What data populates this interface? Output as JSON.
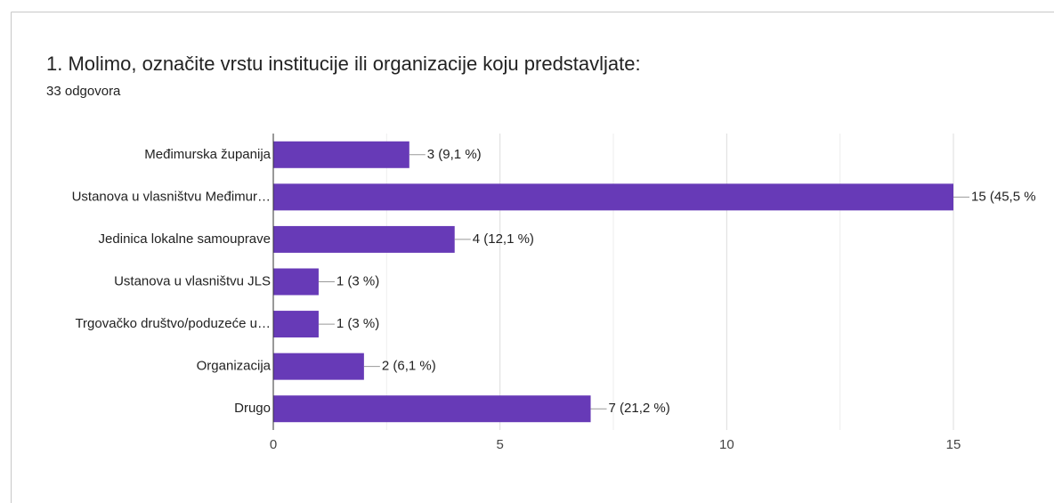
{
  "chart_data": {
    "type": "bar",
    "orientation": "horizontal",
    "title": "1. Molimo, označite vrstu institucije ili organizacije koju predstavljate:",
    "subtitle": "33 odgovora",
    "categories": [
      "Međimurska županija",
      "Ustanova u vlasništvu Međimur…",
      "Jedinica lokalne samouprave",
      "Ustanova u vlasništvu JLS",
      "Trgovačko društvo/poduzeće u…",
      "Organizacija",
      "Drugo"
    ],
    "values": [
      3,
      15,
      4,
      1,
      1,
      2,
      7
    ],
    "value_labels": [
      "3 (9,1 %)",
      "15 (45,5 %",
      "4 (12,1 %)",
      "1 (3 %)",
      "1 (3 %)",
      "2 (6,1 %)",
      "7 (21,2 %)"
    ],
    "color": "#673ab7",
    "xlim": [
      0,
      15
    ],
    "xticks": [
      0,
      5,
      10,
      15
    ],
    "minor_xticks": [
      2.5,
      7.5,
      12.5
    ],
    "grid": true
  }
}
